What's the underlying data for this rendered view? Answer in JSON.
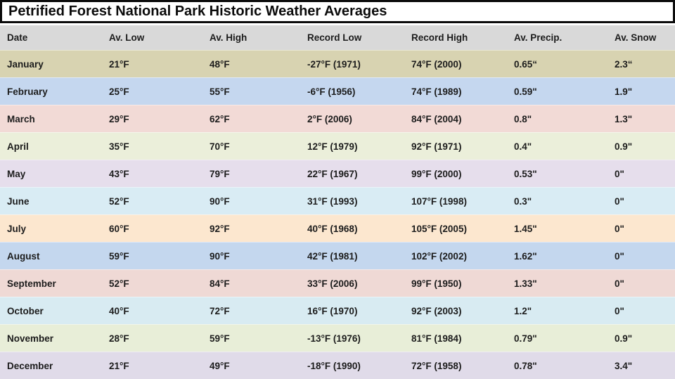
{
  "title": "Petrified Forest National Park Historic Weather Averages",
  "colors": {
    "title_border": "#0b0b0b",
    "header_bg": "#d9d9d9",
    "text": "#1c1c1c"
  },
  "table": {
    "columns": [
      "Date",
      "Av. Low",
      "Av. High",
      "Record Low",
      "Record High",
      "Av. Precip.",
      "Av. Snow"
    ],
    "rows": [
      {
        "bg": "#d8d3b1",
        "cells": [
          "January",
          "21°F",
          "48°F",
          "-27°F (1971)",
          "74°F (2000)",
          "0.65“",
          "2.3“"
        ]
      },
      {
        "bg": "#c5d7ef",
        "cells": [
          "February",
          "25°F",
          "55°F",
          "-6°F (1956)",
          "74°F (1989)",
          "0.59\"",
          "1.9\""
        ]
      },
      {
        "bg": "#f2dad6",
        "cells": [
          "March",
          "29°F",
          "62°F",
          "2°F (2006)",
          "84°F (2004)",
          "0.8\"",
          "1.3\""
        ]
      },
      {
        "bg": "#ebefda",
        "cells": [
          "April",
          "35°F",
          "70°F",
          "12°F (1979)",
          "92°F (1971)",
          "0.4\"",
          "0.9\""
        ]
      },
      {
        "bg": "#e6deec",
        "cells": [
          "May",
          "43°F",
          "79°F",
          "22°F (1967)",
          "99°F (2000)",
          "0.53\"",
          "0\""
        ]
      },
      {
        "bg": "#d9ecf4",
        "cells": [
          "June",
          "52°F",
          "90°F",
          "31°F (1993)",
          "107°F (1998)",
          "0.3\"",
          "0\""
        ]
      },
      {
        "bg": "#fce7cf",
        "cells": [
          "July",
          "60°F",
          "92°F",
          "40°F (1968)",
          "105°F (2005)",
          "1.45\"",
          "0\""
        ]
      },
      {
        "bg": "#c4d7ee",
        "cells": [
          "August",
          "59°F",
          "90°F",
          "42°F (1981)",
          "102°F (2002)",
          "1.62\"",
          "0\""
        ]
      },
      {
        "bg": "#efd9d5",
        "cells": [
          "September",
          "52°F",
          "84°F",
          "33°F (2006)",
          "99°F (1950)",
          "1.33\"",
          "0\""
        ]
      },
      {
        "bg": "#d8ebf2",
        "cells": [
          "October",
          "40°F",
          "72°F",
          "16°F (1970)",
          "92°F (2003)",
          "1.2\"",
          "0\""
        ]
      },
      {
        "bg": "#e8eed8",
        "cells": [
          "November",
          "28°F",
          "59°F",
          "-13°F (1976)",
          "81°F (1984)",
          "0.79\"",
          "0.9\""
        ]
      },
      {
        "bg": "#e0dbe9",
        "cells": [
          "December",
          "21°F",
          "49°F",
          "-18°F (1990)",
          "72°F (1958)",
          "0.78\"",
          "3.4\""
        ]
      }
    ]
  }
}
